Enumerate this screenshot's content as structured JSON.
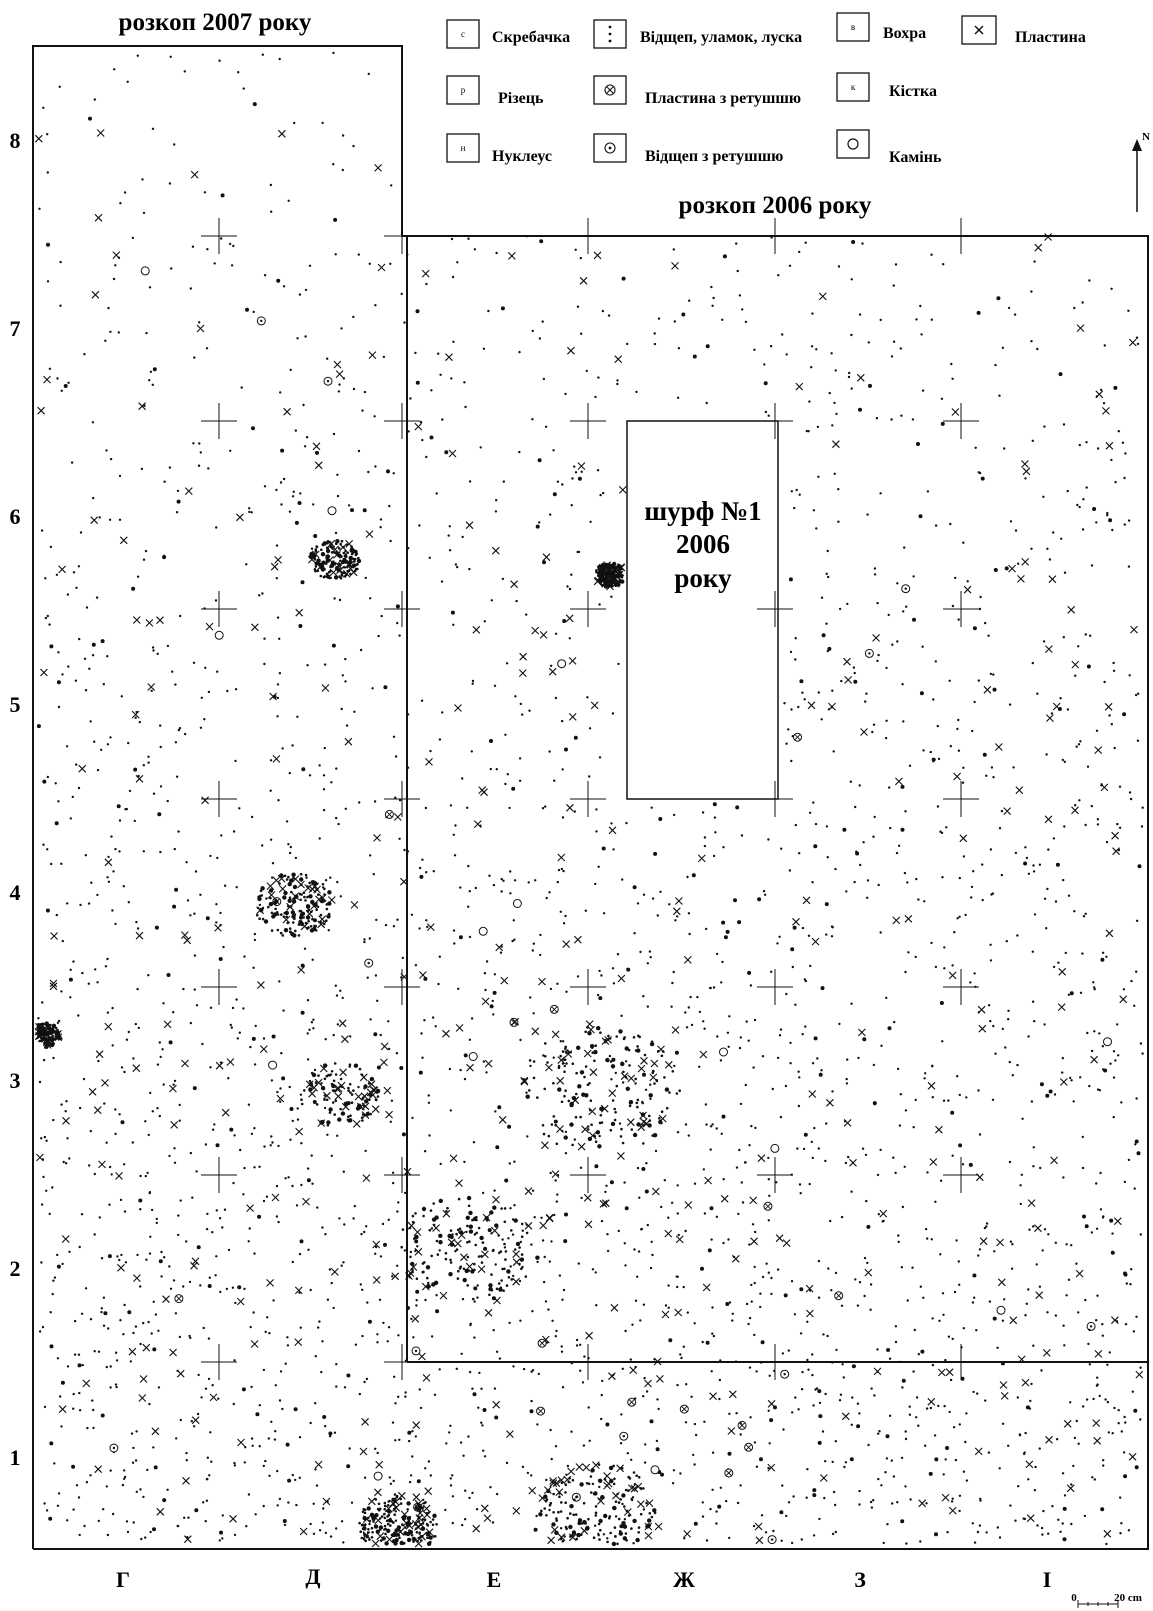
{
  "titles": {
    "excavation_2007": "розкоп 2007 року",
    "excavation_2006": "розкоп 2006 року",
    "test_pit": [
      "шурф №1",
      "2006",
      "року"
    ]
  },
  "north": "N",
  "legend": [
    {
      "id": "scraper",
      "symbol": "с",
      "label": "Скребачка"
    },
    {
      "id": "flake",
      "symbol": "dots",
      "label": "Відщеп, уламок, луска"
    },
    {
      "id": "ochre",
      "symbol": "в",
      "label": "Вохра"
    },
    {
      "id": "blade",
      "symbol": "x",
      "label": "Пластина"
    },
    {
      "id": "burin",
      "symbol": "р",
      "label": "Різець"
    },
    {
      "id": "retouched-blade",
      "symbol": "circle-x",
      "label": "Пластина з ретушшю"
    },
    {
      "id": "bone",
      "symbol": "к",
      "label": "Кістка"
    },
    {
      "id": "core",
      "symbol": "н",
      "label": "Нуклеус"
    },
    {
      "id": "retouched-flake",
      "symbol": "circle-dot",
      "label": "Відщеп з ретушшю"
    },
    {
      "id": "stone",
      "symbol": "circle",
      "label": "Камінь"
    }
  ],
  "rows": [
    "8",
    "7",
    "6",
    "5",
    "4",
    "3",
    "2",
    "1"
  ],
  "columns": [
    "Г",
    "Д",
    "Е",
    "Ж",
    "З",
    "І"
  ],
  "scale": {
    "start": "0",
    "end": "20 cm"
  },
  "colors": {
    "ink": "#111111",
    "background": "#ffffff"
  }
}
